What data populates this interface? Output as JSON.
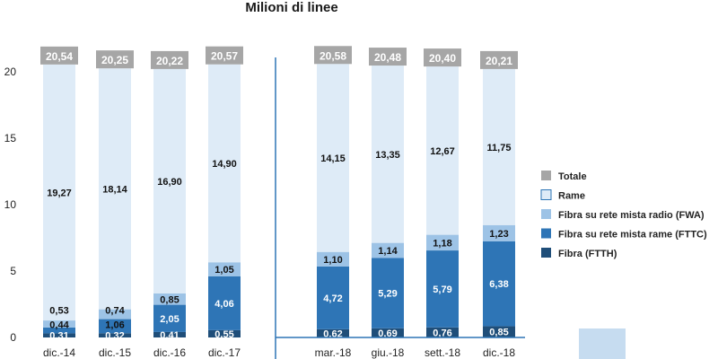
{
  "chart_data": {
    "type": "bar",
    "stacked": true,
    "title": "Milioni di linee",
    "categories": [
      "dic.-14",
      "dic.-15",
      "dic.-16",
      "dic.-17",
      "mar.-18",
      "giu.-18",
      "sett.-18",
      "dic.-18"
    ],
    "series": [
      {
        "name": "Fibra (FTTH)",
        "color": "#1f4e79",
        "values": [
          0.31,
          0.32,
          0.41,
          0.55,
          0.62,
          0.69,
          0.76,
          0.85
        ],
        "labels": [
          "0,31",
          "0,32",
          "0,41",
          "0,55",
          "0,62",
          "0,69",
          "0,76",
          "0,85"
        ]
      },
      {
        "name": "Fibra su rete mista rame (FTTC)",
        "color": "#2e75b6",
        "values": [
          0.44,
          1.06,
          2.05,
          4.06,
          4.72,
          5.29,
          5.79,
          6.38
        ],
        "labels": [
          "0,44",
          "1,06",
          "2,05",
          "4,06",
          "4,72",
          "5,29",
          "5,79",
          "6,38"
        ]
      },
      {
        "name": "Fibra su rete mista radio (FWA)",
        "color": "#9dc3e6",
        "values": [
          0.53,
          0.74,
          0.85,
          1.05,
          1.1,
          1.14,
          1.18,
          1.23
        ],
        "labels": [
          "0,53",
          "0,74",
          "0,85",
          "1,05",
          "1,10",
          "1,14",
          "1,18",
          "1,23"
        ]
      },
      {
        "name": "Rame",
        "color": "#deebf7",
        "values": [
          19.27,
          18.14,
          16.9,
          14.9,
          14.15,
          13.35,
          12.67,
          11.75
        ],
        "labels": [
          "19,27",
          "18,14",
          "16,90",
          "14,90",
          "14,15",
          "13,35",
          "12,67",
          "11,75"
        ]
      }
    ],
    "totals": {
      "name": "Totale",
      "color": "#a6a6a6",
      "values": [
        20.54,
        20.25,
        20.22,
        20.57,
        20.58,
        20.48,
        20.4,
        20.21
      ],
      "labels": [
        "20,54",
        "20,25",
        "20,22",
        "20,57",
        "20,58",
        "20,48",
        "20,40",
        "20,21"
      ]
    },
    "legend_order": [
      "Totale",
      "Rame",
      "Fibra su rete mista radio (FWA)",
      "Fibra su rete mista rame (FTTC)",
      "Fibra (FTTH)"
    ],
    "legend_position": "right",
    "ylim": [
      0,
      20
    ],
    "yticks": [
      0,
      5,
      10,
      15,
      20
    ],
    "grid": false,
    "divider_after_category": "dic.-17"
  }
}
